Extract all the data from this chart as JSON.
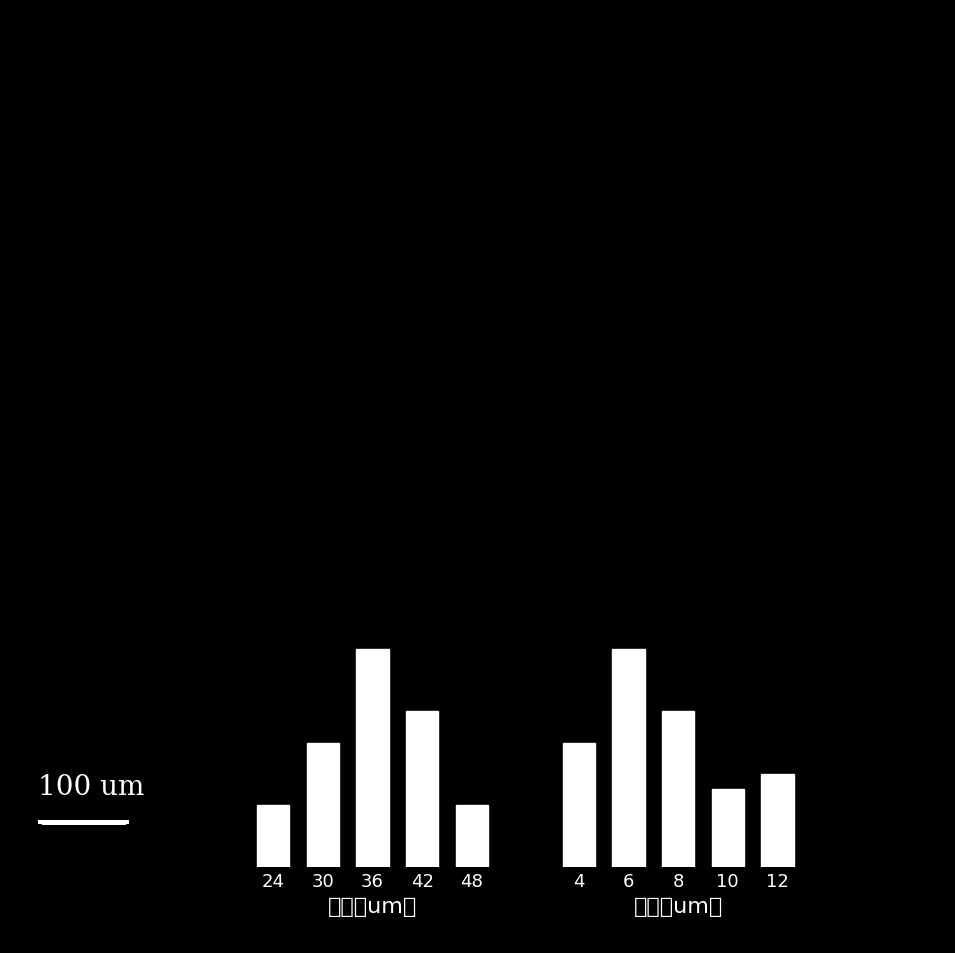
{
  "background_color": "#000000",
  "bar_color": "#ffffff",
  "text_color": "#ffffff",
  "diameter_labels": [
    "24",
    "30",
    "36",
    "42",
    "48"
  ],
  "diameter_values": [
    2,
    4,
    7,
    5,
    2
  ],
  "wall_labels": [
    "4",
    "6",
    "8",
    "10",
    "12"
  ],
  "wall_values": [
    4,
    7,
    5,
    2.5,
    3
  ],
  "xlabel_diameter": "直径（um）",
  "xlabel_wall": "壁厚（um）",
  "scalebar_text": "100 um",
  "figure_width": 9.55,
  "figure_height": 9.54,
  "dpi": 100
}
